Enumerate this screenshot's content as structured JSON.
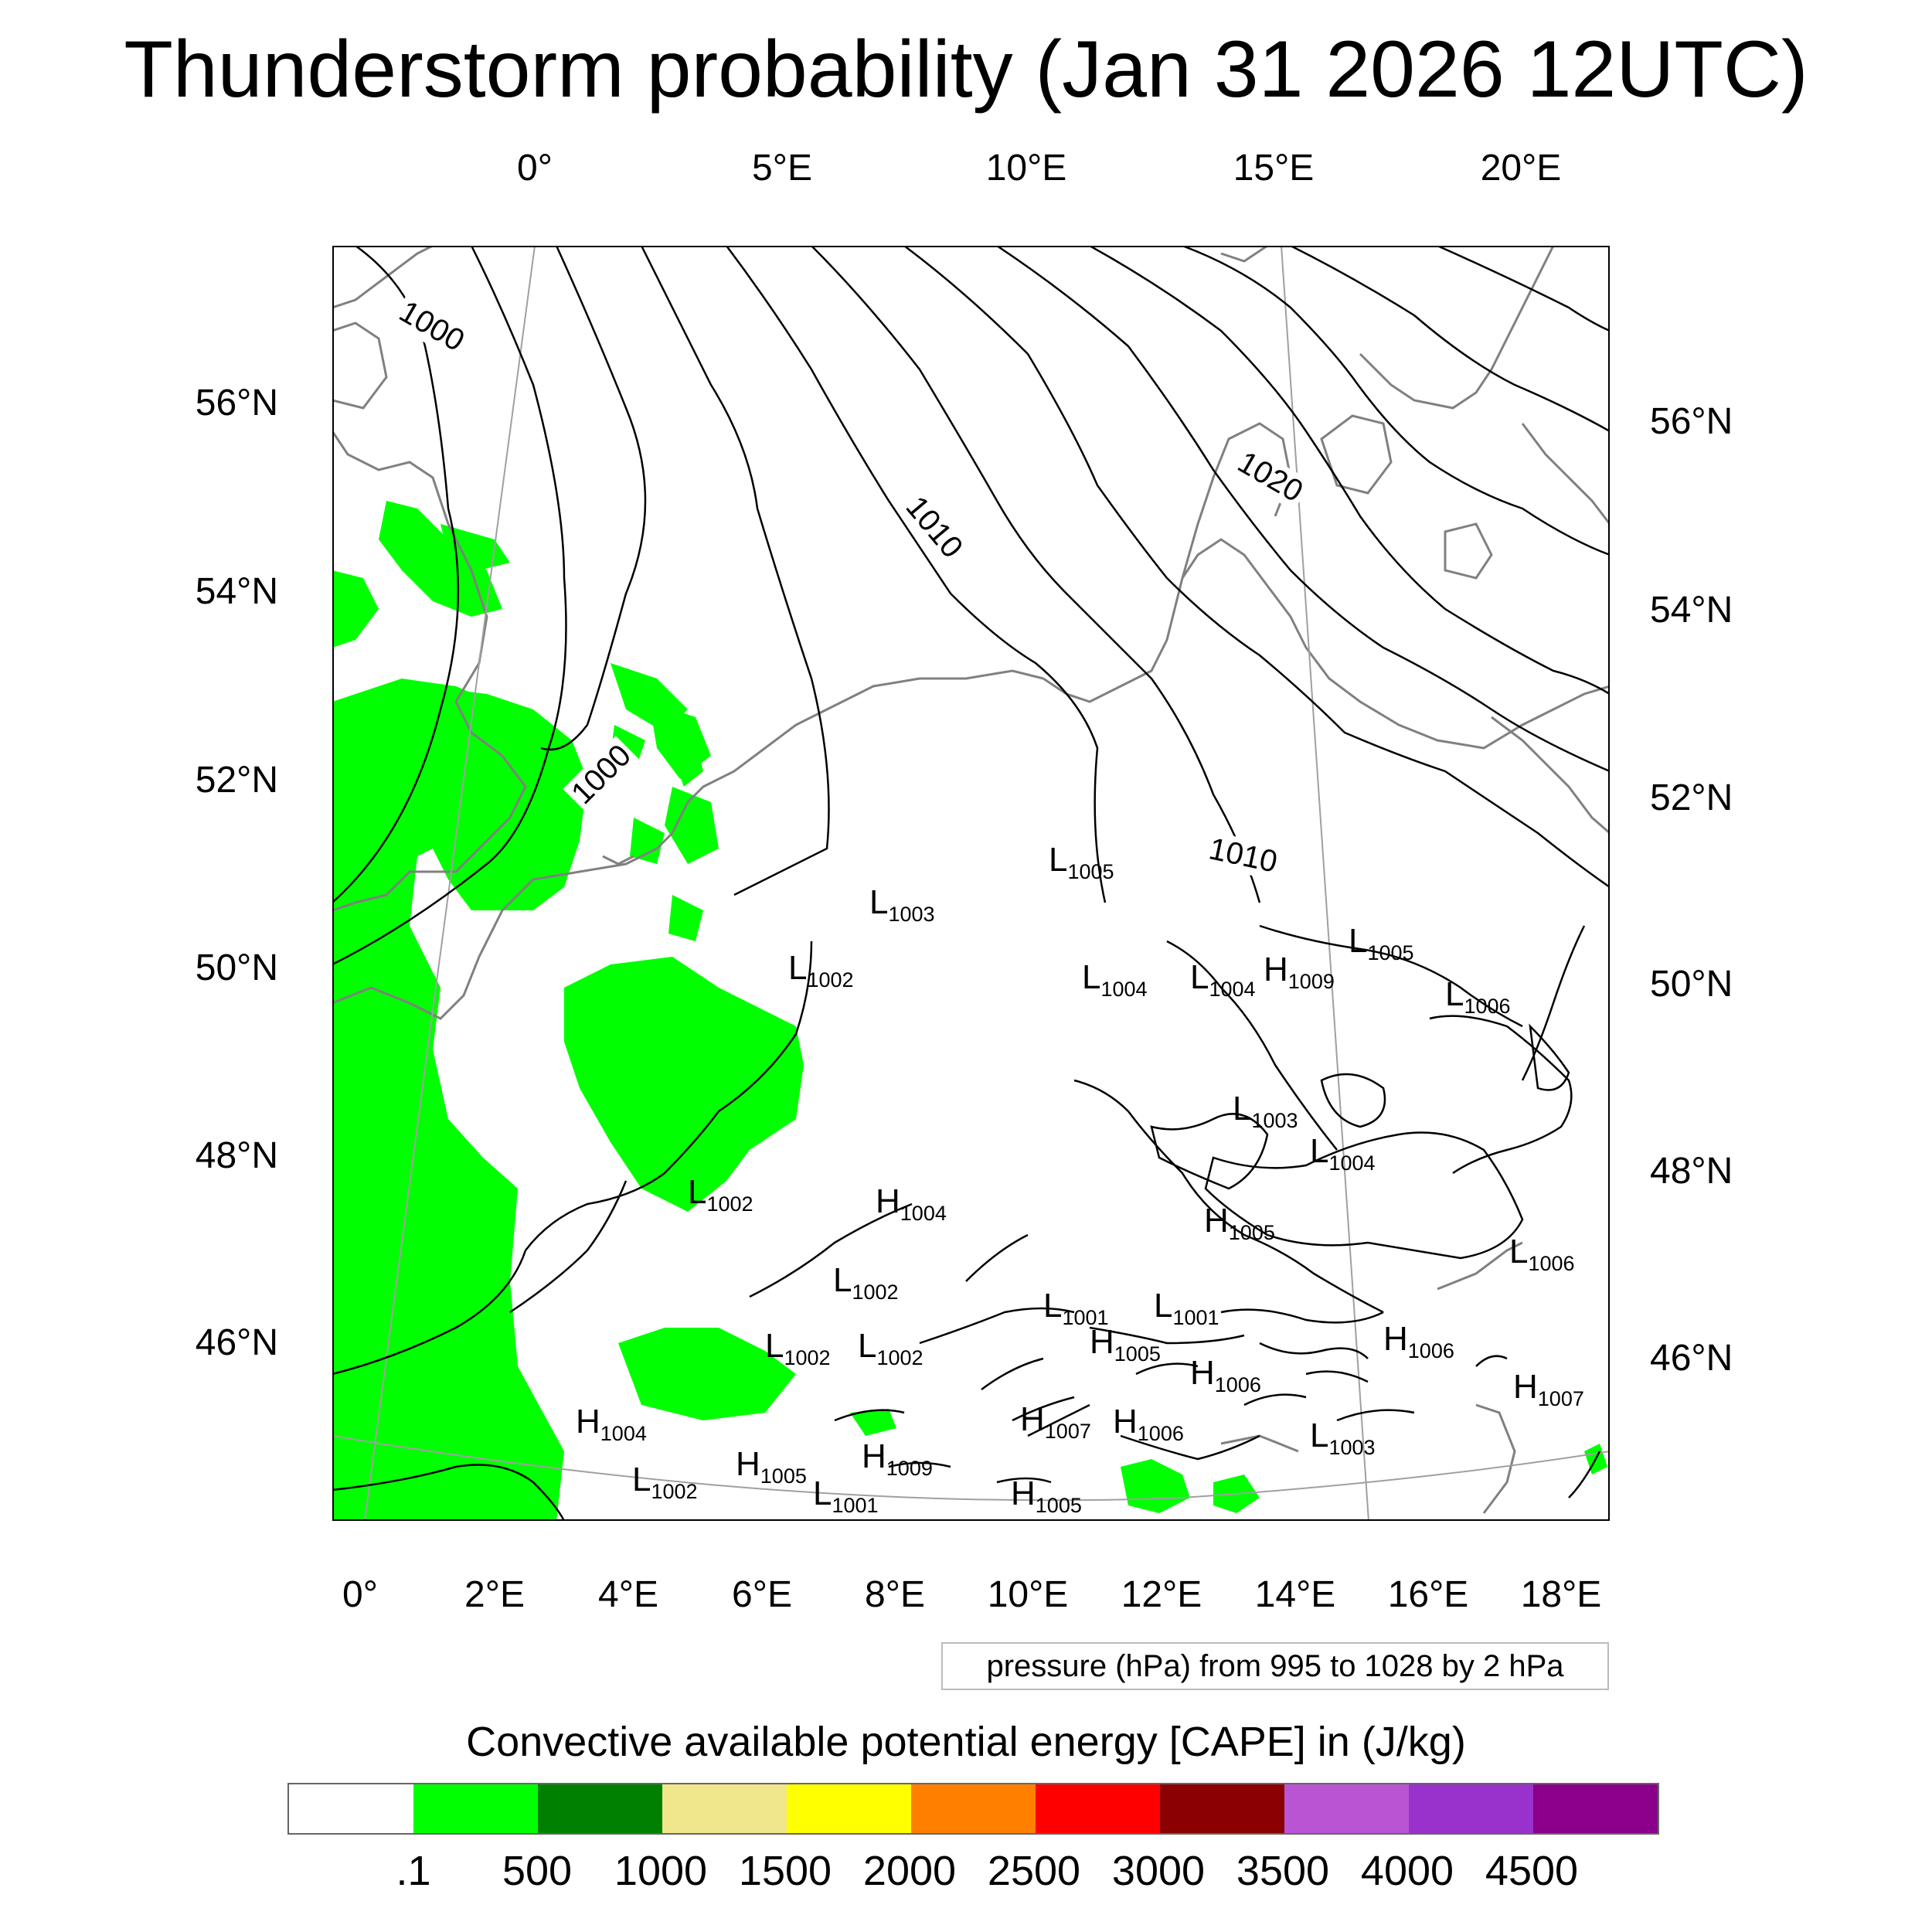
{
  "title": "Thunderstorm probability (Jan 31 2026 12UTC)",
  "top_axis_labels": [
    "0°",
    "5°E",
    "10°E",
    "15°E",
    "20°E"
  ],
  "bottom_axis_labels": [
    "0°",
    "2°E",
    "4°E",
    "6°E",
    "8°E",
    "10°E",
    "12°E",
    "14°E",
    "16°E",
    "18°E"
  ],
  "left_axis_labels": [
    "56°N",
    "54°N",
    "52°N",
    "50°N",
    "48°N",
    "46°N"
  ],
  "right_axis_labels": [
    "56°N",
    "54°N",
    "52°N",
    "50°N",
    "48°N",
    "46°N"
  ],
  "isobar_labels": [
    "1000",
    "1010",
    "1020",
    "1000",
    "1010"
  ],
  "pressure_centers": [
    {
      "type": "L",
      "value": "1005"
    },
    {
      "type": "L",
      "value": "1003"
    },
    {
      "type": "L",
      "value": "1002"
    },
    {
      "type": "L",
      "value": "1004"
    },
    {
      "type": "L",
      "value": "1004"
    },
    {
      "type": "H",
      "value": "1009"
    },
    {
      "type": "L",
      "value": "1005"
    },
    {
      "type": "L",
      "value": "1006"
    },
    {
      "type": "L",
      "value": "1003"
    },
    {
      "type": "L",
      "value": "1004"
    },
    {
      "type": "L",
      "value": "1002"
    },
    {
      "type": "H",
      "value": "1004"
    },
    {
      "type": "H",
      "value": "1005"
    },
    {
      "type": "L",
      "value": "1006"
    },
    {
      "type": "L",
      "value": "1002"
    },
    {
      "type": "L",
      "value": "1001"
    },
    {
      "type": "L",
      "value": "1001"
    },
    {
      "type": "L",
      "value": "1002"
    },
    {
      "type": "L",
      "value": "1002"
    },
    {
      "type": "H",
      "value": "1005"
    },
    {
      "type": "H",
      "value": "1006"
    },
    {
      "type": "H",
      "value": "1006"
    },
    {
      "type": "H",
      "value": "1007"
    },
    {
      "type": "H",
      "value": "1007"
    },
    {
      "type": "H",
      "value": "1006"
    },
    {
      "type": "H",
      "value": "1004"
    },
    {
      "type": "H",
      "value": "1009"
    },
    {
      "type": "H",
      "value": "1005"
    },
    {
      "type": "L",
      "value": "1003"
    },
    {
      "type": "L",
      "value": "1002"
    },
    {
      "type": "L",
      "value": "1001"
    },
    {
      "type": "H",
      "value": "1005"
    }
  ],
  "pressure_info": "pressure (hPa) from 995 to 1028 by 2 hPa",
  "colorbar": {
    "title": "Convective available potential energy [CAPE] in (J/kg)",
    "colors": [
      "#ffffff",
      "#00ff00",
      "#008000",
      "#f0e68c",
      "#ffff00",
      "#ff8000",
      "#ff0000",
      "#8b0000",
      "#b955d3",
      "#9932cc",
      "#8b008b"
    ],
    "labels": [
      ".1",
      "500",
      "1000",
      "1500",
      "2000",
      "2500",
      "3000",
      "3500",
      "4000",
      "4500"
    ]
  },
  "colors": {
    "cape_fill": "#00ff00",
    "coast": "#808080",
    "isobar": "#000000"
  }
}
